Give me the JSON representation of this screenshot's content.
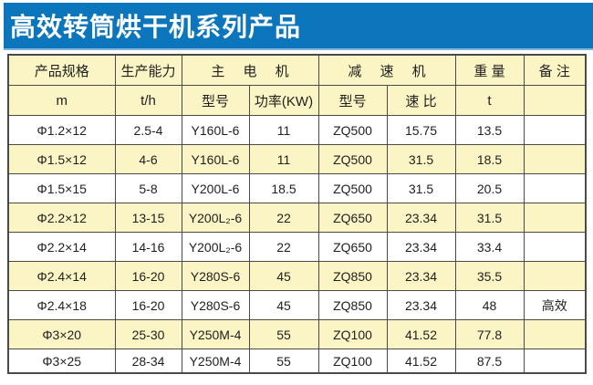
{
  "banner": {
    "title": "高效转筒烘干机系列产品"
  },
  "colors": {
    "banner_bg": "#0C76BD",
    "banner_edge": "#7FB5DC",
    "row_alt_bg": "#FBF5C5",
    "row_bg": "#FFFFFF",
    "border": "#4A4A4A",
    "banner_text": "#FFFFFF"
  },
  "table": {
    "group_headers": {
      "spec": "产品规格",
      "capacity": "生产能力",
      "main_motor": "主 电 机",
      "reducer": "减 速 机",
      "weight": "重 量",
      "remark": "备 注"
    },
    "sub_headers": {
      "spec_unit": "m",
      "capacity_unit": "t/h",
      "motor_model": "型号",
      "motor_power": "功率(KW)",
      "reducer_model": "型号",
      "reducer_ratio": "速 比",
      "weight_unit": "t",
      "remark_blank": ""
    },
    "rows": [
      [
        "Φ1.2×12",
        "2.5-4",
        "Y160L-6",
        "11",
        "ZQ500",
        "15.75",
        "13.5",
        ""
      ],
      [
        "Φ1.5×12",
        "4-6",
        "Y160L-6",
        "11",
        "ZQ500",
        "31.5",
        "18.5",
        ""
      ],
      [
        "Φ1.5×15",
        "5-8",
        "Y200L-6",
        "18.5",
        "ZQ500",
        "31.5",
        "20.5",
        ""
      ],
      [
        "Φ2.2×12",
        "13-15",
        "Y200L₂-6",
        "22",
        "ZQ650",
        "23.34",
        "31.5",
        ""
      ],
      [
        "Φ2.2×14",
        "14-16",
        "Y200L₂-6",
        "22",
        "ZQ650",
        "23.34",
        "33.4",
        ""
      ],
      [
        "Φ2.4×14",
        "16-20",
        "Y280S-6",
        "45",
        "ZQ850",
        "23.34",
        "35.5",
        ""
      ],
      [
        "Φ2.4×18",
        "16-20",
        "Y280S-6",
        "45",
        "ZQ850",
        "23.34",
        "48",
        "高效"
      ],
      [
        "Φ3×20",
        "25-30",
        "Y250M-4",
        "55",
        "ZQ100",
        "41.52",
        "77.8",
        ""
      ],
      [
        "Φ3×25",
        "28-34",
        "Y250M-4",
        "55",
        "ZQ100",
        "41.52",
        "87.5",
        ""
      ]
    ]
  }
}
